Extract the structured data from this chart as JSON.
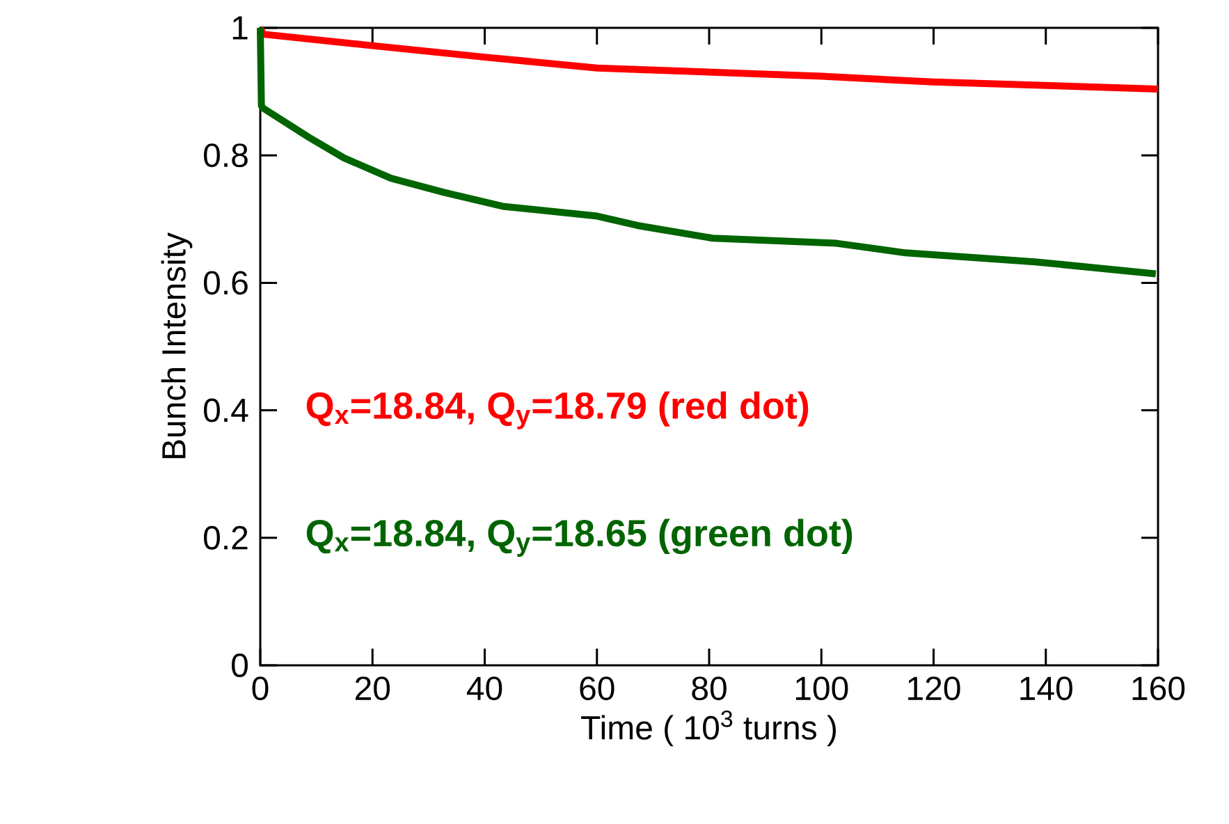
{
  "chart_data": {
    "type": "line",
    "xlabel": "Time ( 10$^{3}$ turns )",
    "ylabel": "Bunch Intensity",
    "xlim": [
      0,
      160
    ],
    "ylim": [
      0,
      1
    ],
    "xticks": [
      0,
      20,
      40,
      60,
      80,
      100,
      120,
      140,
      160
    ],
    "yticks": [
      0,
      0.2,
      0.4,
      0.6,
      0.8,
      1
    ],
    "grid": false,
    "line_style": "solid",
    "series": [
      {
        "name": "Q$_{x}$=18.84, Q$_{y}$=18.79 (red dot)",
        "color": "#ff0000",
        "x": [
          0,
          0.5,
          20,
          40,
          60,
          100,
          120,
          160
        ],
        "values": [
          1.0,
          0.99,
          0.972,
          0.954,
          0.937,
          0.924,
          0.915,
          0.904
        ]
      },
      {
        "name": "Q$_{x}$=18.84, Q$_{y}$=18.65 (green dot)",
        "color": "#006400",
        "x": [
          0,
          0.2,
          0.5,
          8.7,
          14.9,
          23.3,
          32.7,
          43.2,
          59.8,
          67.2,
          80.6,
          102.7,
          115,
          138,
          159.6
        ],
        "values": [
          1.0,
          0.878,
          0.874,
          0.828,
          0.796,
          0.764,
          0.742,
          0.72,
          0.705,
          0.69,
          0.67,
          0.662,
          0.647,
          0.633,
          0.614
        ]
      }
    ]
  }
}
